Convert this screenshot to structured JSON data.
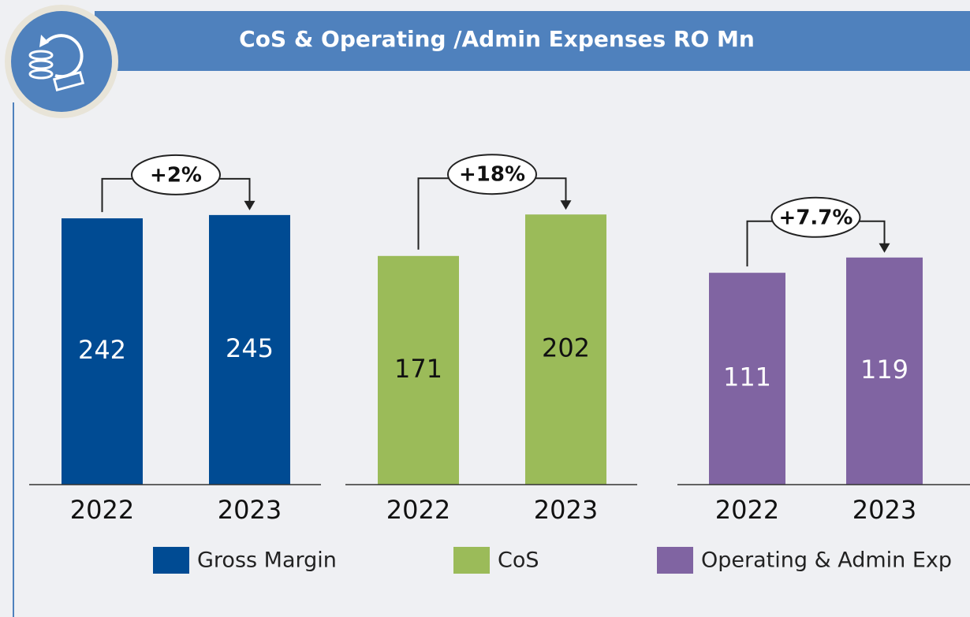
{
  "title": "CoS & Operating /Admin Expenses RO Mn",
  "chart_data": [
    {
      "type": "bar",
      "categories": [
        "2022",
        "2023"
      ],
      "annotation": "+2%",
      "ylim": [
        0,
        333
      ],
      "series": [
        {
          "name": "Gross Margin",
          "color": "#004b93",
          "values": [
            242,
            245
          ]
        }
      ]
    },
    {
      "type": "bar",
      "categories": [
        "2022",
        "2023"
      ],
      "annotation": "+18%",
      "ylim": [
        0,
        274
      ],
      "series": [
        {
          "name": "CoS",
          "color": "#9bbb59",
          "values": [
            171,
            202
          ]
        }
      ]
    },
    {
      "type": "bar",
      "categories": [
        "2022",
        "2023"
      ],
      "annotation": "+7.7%",
      "ylim": [
        0,
        192
      ],
      "series": [
        {
          "name": "Operating & Admin Exp",
          "color": "#8064a2",
          "values": [
            111,
            119
          ]
        }
      ]
    }
  ]
}
